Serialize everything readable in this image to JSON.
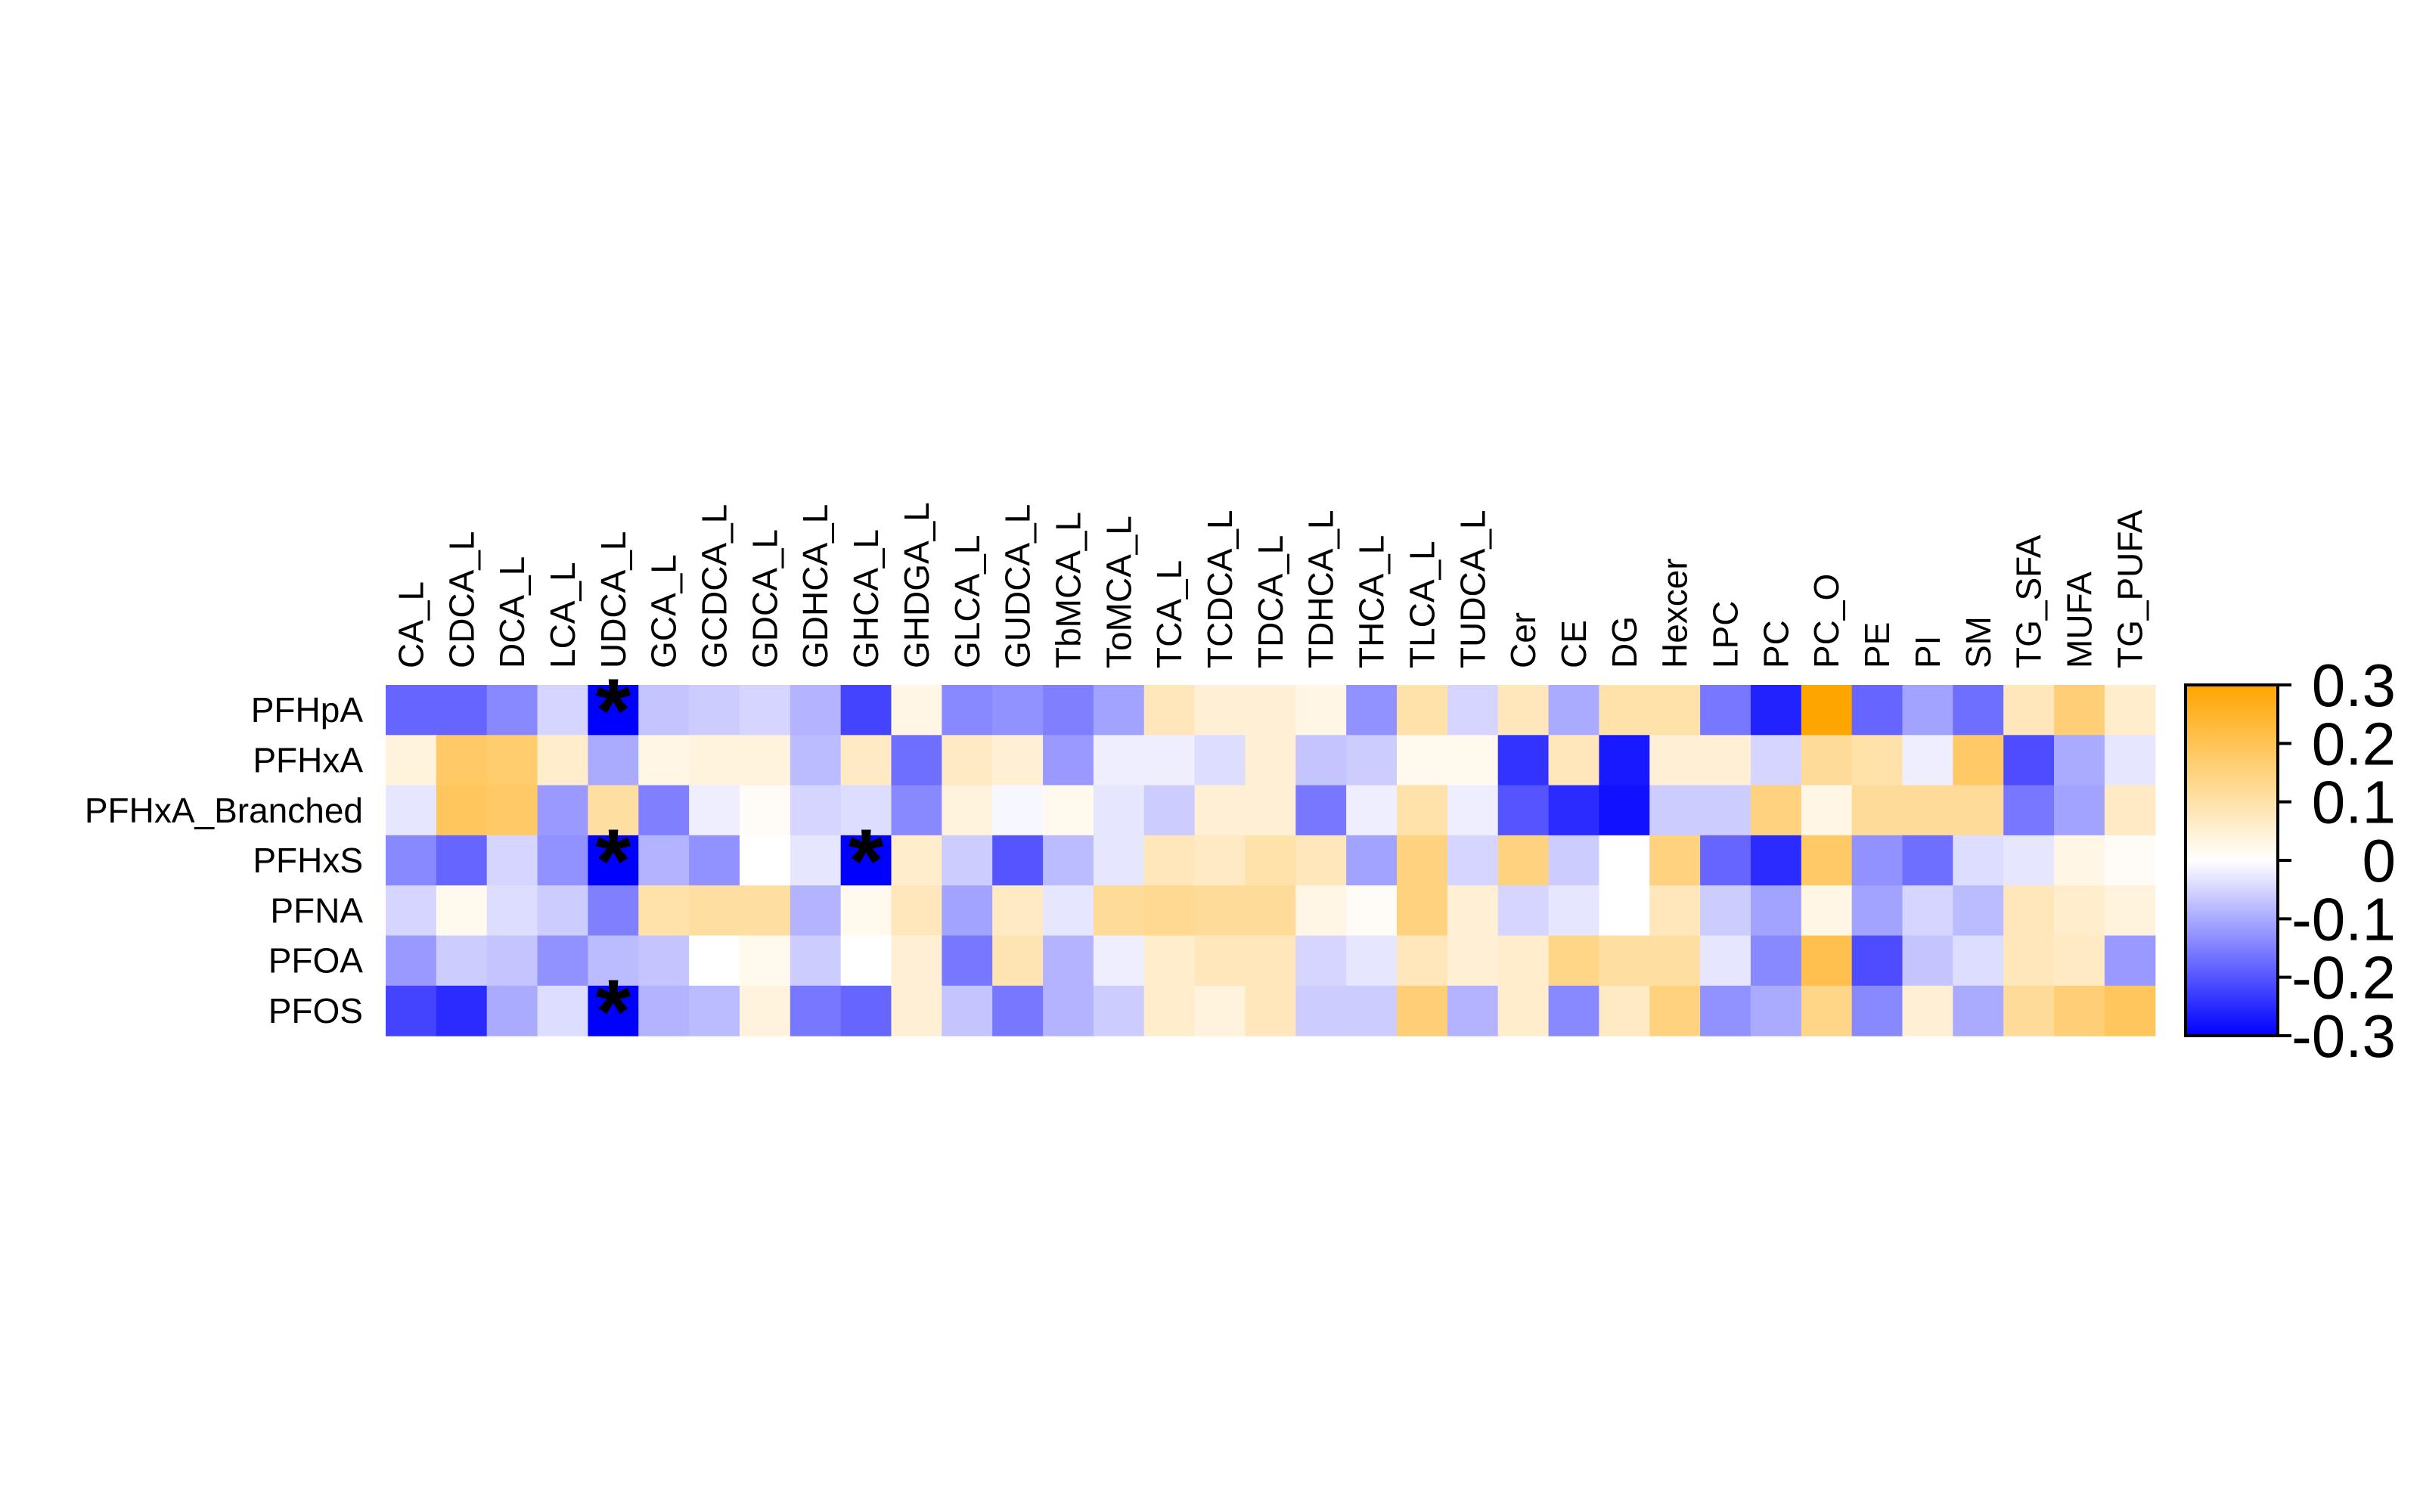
{
  "chart_data": {
    "type": "heatmap",
    "title": "",
    "xlabel": "",
    "ylabel": "",
    "rows": [
      "PFHpA",
      "PFHxA",
      "PFHxA_Branched",
      "PFHxS",
      "PFNA",
      "PFOA",
      "PFOS"
    ],
    "columns": [
      "CA_L",
      "CDCA_L",
      "DCA_L",
      "LCA_L",
      "UDCA_L",
      "GCA_L",
      "GCDCA_L",
      "GDCA_L",
      "GDHCA_L",
      "GHCA_L",
      "GHDGA_L",
      "GLCA_L",
      "GUDCA_L",
      "TbMCA_L",
      "ToMCA_L",
      "TCA_L",
      "TCDCA_L",
      "TDCA_L",
      "TDHCA_L",
      "THCA_L",
      "TLCA_L",
      "TUDCA_L",
      "Cer",
      "CE",
      "DG",
      "Hexcer",
      "LPC",
      "PC",
      "PC_O",
      "PE",
      "PI",
      "SM",
      "TG_SFA",
      "MUFA",
      "TG_PUFA"
    ],
    "values": [
      [
        -0.18,
        -0.18,
        -0.14,
        -0.05,
        -0.3,
        -0.07,
        -0.06,
        -0.05,
        -0.09,
        -0.22,
        0.03,
        -0.14,
        -0.13,
        -0.15,
        -0.11,
        0.08,
        0.05,
        0.05,
        0.03,
        -0.13,
        0.1,
        -0.05,
        0.08,
        -0.1,
        0.1,
        0.1,
        -0.16,
        -0.26,
        0.3,
        -0.18,
        -0.11,
        -0.17,
        0.08,
        0.16,
        0.06
      ],
      [
        0.04,
        0.18,
        0.17,
        0.06,
        -0.1,
        0.03,
        0.04,
        0.04,
        -0.08,
        0.07,
        -0.17,
        0.07,
        0.05,
        -0.12,
        -0.02,
        -0.02,
        -0.04,
        0.05,
        -0.07,
        -0.06,
        0.02,
        0.02,
        -0.24,
        0.08,
        -0.27,
        0.05,
        0.05,
        -0.05,
        0.12,
        0.1,
        -0.02,
        0.18,
        -0.21,
        -0.1,
        -0.03
      ],
      [
        -0.03,
        0.19,
        0.18,
        -0.12,
        0.11,
        -0.15,
        -0.02,
        0.01,
        -0.05,
        -0.04,
        -0.14,
        0.04,
        -0.01,
        0.02,
        -0.03,
        -0.06,
        0.05,
        0.05,
        -0.16,
        -0.02,
        0.1,
        -0.02,
        -0.2,
        -0.25,
        -0.28,
        -0.06,
        -0.06,
        0.15,
        0.03,
        0.12,
        0.12,
        0.12,
        -0.16,
        -0.11,
        0.07
      ],
      [
        -0.14,
        -0.18,
        -0.05,
        -0.13,
        -0.3,
        -0.09,
        -0.13,
        0.0,
        -0.03,
        -0.3,
        0.06,
        -0.06,
        -0.2,
        -0.08,
        -0.03,
        0.08,
        0.07,
        0.1,
        0.08,
        -0.11,
        0.15,
        -0.05,
        0.15,
        -0.06,
        0.0,
        0.15,
        -0.18,
        -0.25,
        0.18,
        -0.13,
        -0.17,
        -0.04,
        -0.03,
        0.03,
        0.01
      ],
      [
        -0.05,
        0.02,
        -0.04,
        -0.06,
        -0.15,
        0.1,
        0.11,
        0.11,
        -0.09,
        0.02,
        0.08,
        -0.11,
        0.07,
        -0.03,
        0.12,
        0.13,
        0.12,
        0.12,
        0.03,
        0.01,
        0.15,
        0.05,
        -0.05,
        -0.03,
        0.0,
        0.08,
        -0.06,
        -0.11,
        0.03,
        -0.11,
        -0.05,
        -0.08,
        0.08,
        0.06,
        0.04
      ],
      [
        -0.12,
        -0.06,
        -0.07,
        -0.13,
        -0.08,
        -0.07,
        0.0,
        0.02,
        -0.06,
        0.0,
        0.05,
        -0.16,
        0.09,
        -0.09,
        -0.02,
        0.06,
        0.08,
        0.08,
        -0.05,
        -0.03,
        0.08,
        0.05,
        0.06,
        0.14,
        0.11,
        0.11,
        -0.03,
        -0.14,
        0.21,
        -0.21,
        -0.07,
        -0.04,
        0.08,
        0.07,
        -0.12
      ],
      [
        -0.22,
        -0.25,
        -0.1,
        -0.04,
        -0.3,
        -0.09,
        -0.08,
        0.04,
        -0.16,
        -0.18,
        0.05,
        -0.07,
        -0.16,
        -0.09,
        -0.06,
        0.06,
        0.04,
        0.08,
        -0.06,
        -0.06,
        0.16,
        -0.09,
        0.06,
        -0.14,
        0.07,
        0.15,
        -0.13,
        -0.1,
        0.14,
        -0.14,
        0.05,
        -0.1,
        0.12,
        0.16,
        0.19
      ]
    ],
    "significant": [
      [
        0,
        4
      ],
      [
        3,
        4
      ],
      [
        3,
        9
      ],
      [
        6,
        4
      ]
    ],
    "significance_marker": "*",
    "color_scale": {
      "min": -0.3,
      "max": 0.3,
      "low_color": "#0000ff",
      "mid_color": "#ffffff",
      "high_color": "#ffa500",
      "ticks": [
        "0.3",
        "0.2",
        "0.1",
        "0",
        "-0.1",
        "-0.2",
        "-0.3"
      ]
    }
  }
}
